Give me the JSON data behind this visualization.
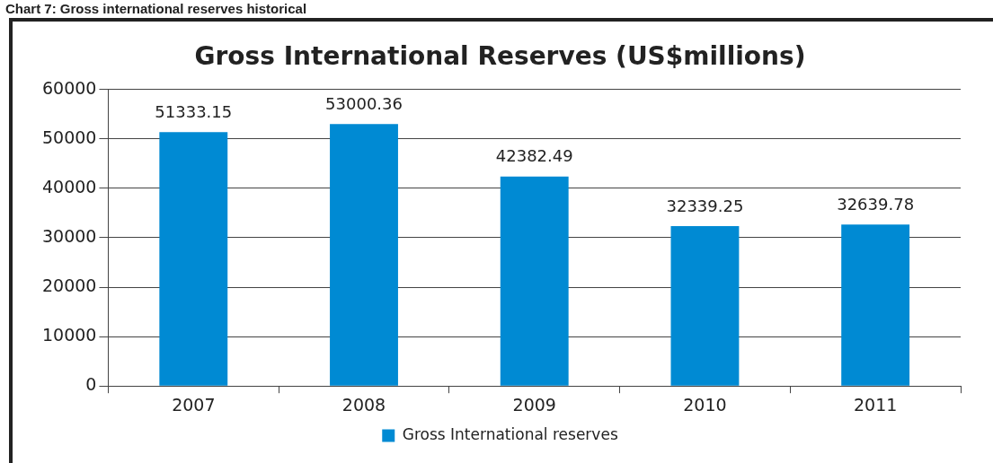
{
  "chart_data": {
    "type": "bar",
    "title": "Gross International Reserves (US$millions)",
    "annotations": [
      "Chart 7: Gross international reserves historical"
    ],
    "categories": [
      "2007",
      "2008",
      "2009",
      "2010",
      "2011"
    ],
    "series": [
      {
        "name": "Gross International reserves",
        "color": "#008ad3",
        "values": [
          51333.15,
          53000.36,
          42382.49,
          32339.25,
          32639.78
        ]
      }
    ],
    "ylim": [
      0,
      60000
    ],
    "yticks": [
      0,
      10000,
      20000,
      30000,
      40000,
      50000,
      60000
    ],
    "grid": "y",
    "legend": "bottom",
    "data_labels": true
  }
}
